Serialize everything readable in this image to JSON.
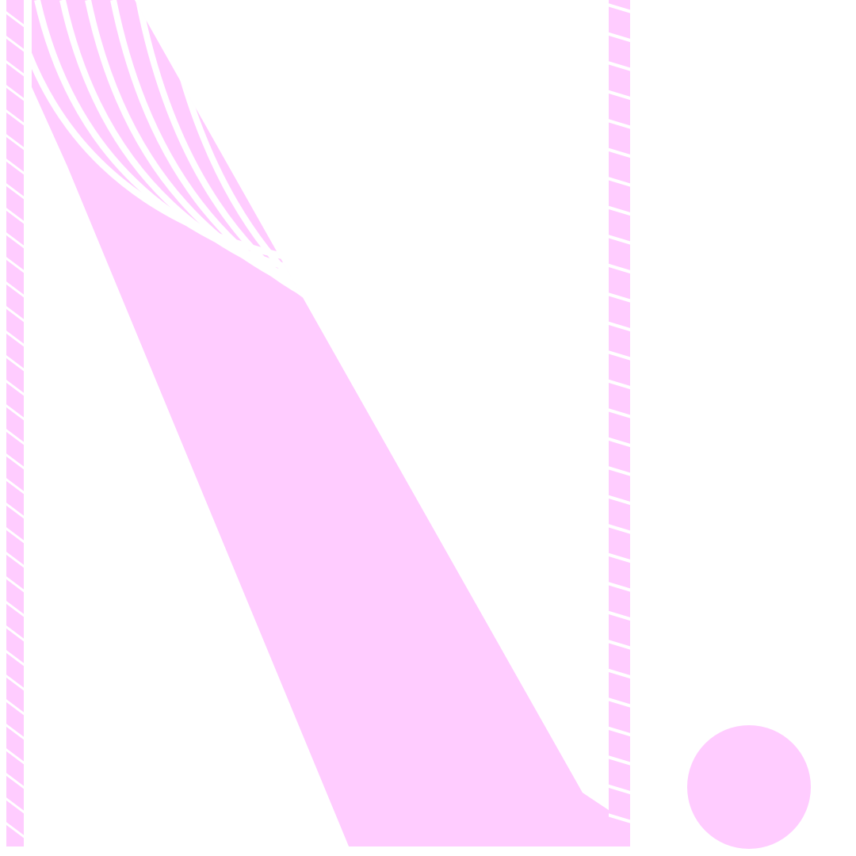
{
  "colors": {
    "shape_fill": "#FFCCFF",
    "background": "#FFFFFF"
  }
}
